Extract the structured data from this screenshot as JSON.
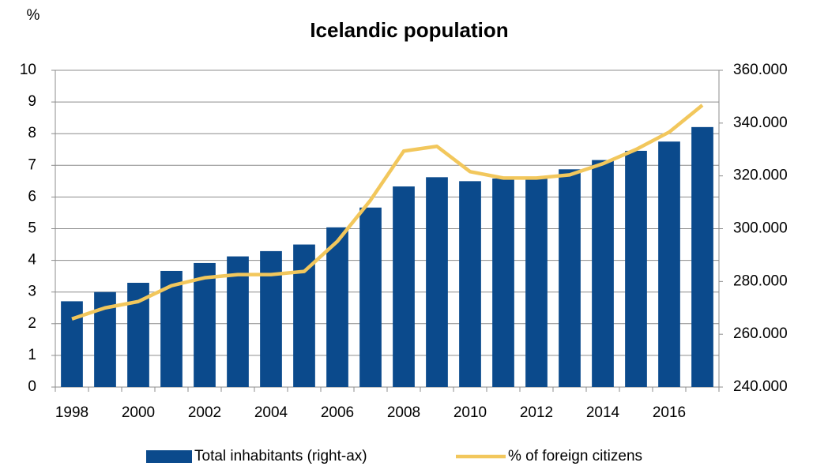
{
  "chart_data": {
    "type": "bar",
    "title": "Icelandic population",
    "y_label": "%",
    "categories": [
      "1998",
      null,
      "2000",
      null,
      "2002",
      null,
      "2004",
      null,
      "2006",
      null,
      "2008",
      null,
      "2010",
      null,
      "2012",
      null,
      "2014",
      null,
      "2016",
      null
    ],
    "series": [
      {
        "name": "Total inhabitants (right-ax)",
        "type": "bar",
        "axis": "y2",
        "color": "#0b4a8c",
        "values": [
          272500,
          276000,
          279500,
          284000,
          287000,
          289500,
          291500,
          294000,
          300500,
          308000,
          316000,
          319500,
          318000,
          319000,
          319500,
          322500,
          326000,
          329500,
          333000,
          338500
        ]
      },
      {
        "name": "% of foreign citizens",
        "type": "line",
        "color": "#f2c75c",
        "values": [
          2.15,
          2.5,
          2.7,
          3.2,
          3.45,
          3.55,
          3.55,
          3.65,
          4.6,
          5.9,
          7.45,
          7.6,
          6.8,
          6.6,
          6.6,
          6.7,
          7.05,
          7.5,
          8.05,
          8.9
        ]
      }
    ],
    "ylim": [
      0,
      10
    ],
    "yticks": [
      0,
      1,
      2,
      3,
      4,
      5,
      6,
      7,
      8,
      9,
      10
    ],
    "y2lim": [
      240000,
      360000
    ],
    "y2ticks": [
      {
        "value": 240000,
        "label": "240.000"
      },
      {
        "value": 260000,
        "label": "260.000"
      },
      {
        "value": 280000,
        "label": "280.000"
      },
      {
        "value": 300000,
        "label": "300.000"
      },
      {
        "value": 320000,
        "label": "320.000"
      },
      {
        "value": 340000,
        "label": "340.000"
      },
      {
        "value": 360000,
        "label": "360.000"
      }
    ],
    "grid": true,
    "legend": "bottom"
  }
}
